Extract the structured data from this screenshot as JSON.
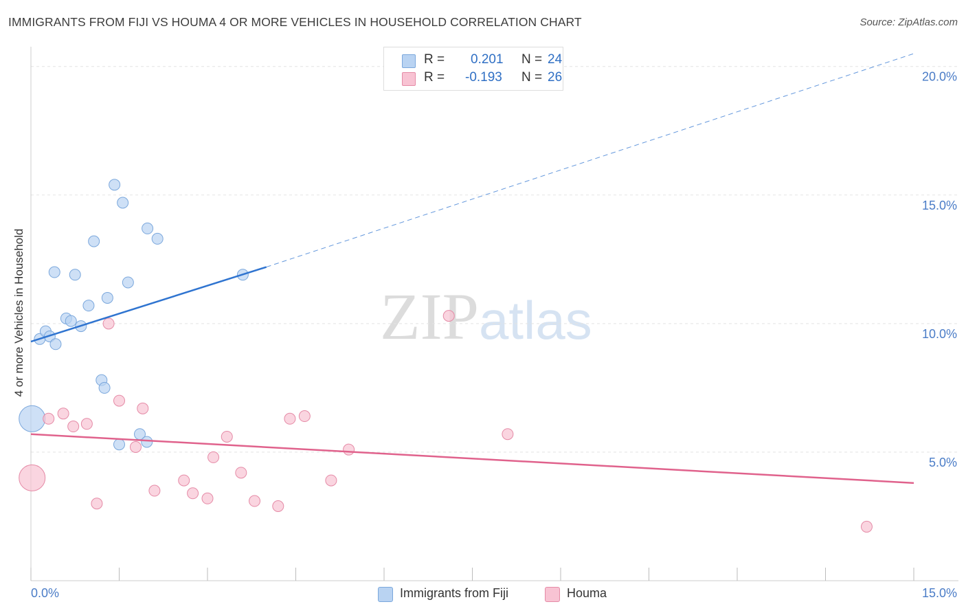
{
  "title": "IMMIGRANTS FROM FIJI VS HOUMA 4 OR MORE VEHICLES IN HOUSEHOLD CORRELATION CHART",
  "source": "Source: ZipAtlas.com",
  "watermark": {
    "zip": "ZIP",
    "atlas": "atlas"
  },
  "legend": {
    "fiji": {
      "r_label": "R =",
      "r_value": "0.201",
      "n_label": "N =",
      "n_value": "24"
    },
    "houma": {
      "r_label": "R =",
      "r_value": "-0.193",
      "n_label": "N =",
      "n_value": "26"
    }
  },
  "bottom_legend": {
    "fiji": "Immigrants from Fiji",
    "houma": "Houma"
  },
  "colors": {
    "fiji_fill": "#b9d3f2",
    "fiji_stroke": "#7aa7dc",
    "fiji_line": "#2f74d0",
    "houma_fill": "#f8c3d3",
    "houma_stroke": "#e58aa6",
    "houma_line": "#e0628c",
    "axis_label": "#4a7cc7",
    "grid": "#e3e3e3"
  },
  "chart_data": {
    "type": "scatter",
    "title": "IMMIGRANTS FROM FIJI VS HOUMA 4 OR MORE VEHICLES IN HOUSEHOLD CORRELATION CHART",
    "xlabel": "",
    "ylabel": "4 or more Vehicles in Household",
    "xlim": [
      0,
      15
    ],
    "ylim": [
      0,
      20.5
    ],
    "x_tick_labels": [
      "0.0%",
      "15.0%"
    ],
    "y_ticks": [
      5,
      10,
      15,
      20
    ],
    "y_tick_labels": [
      "5.0%",
      "10.0%",
      "15.0%",
      "20.0%"
    ],
    "grid": true,
    "series": [
      {
        "name": "Immigrants from Fiji",
        "r": 0.201,
        "n": 24,
        "points": [
          {
            "x": 0.02,
            "y": 6.3,
            "size": "large"
          },
          {
            "x": 0.15,
            "y": 9.4
          },
          {
            "x": 0.25,
            "y": 9.7
          },
          {
            "x": 0.32,
            "y": 9.5
          },
          {
            "x": 0.42,
            "y": 9.2
          },
          {
            "x": 0.4,
            "y": 12.0
          },
          {
            "x": 0.6,
            "y": 10.2
          },
          {
            "x": 0.68,
            "y": 10.1
          },
          {
            "x": 0.75,
            "y": 11.9
          },
          {
            "x": 0.85,
            "y": 9.9
          },
          {
            "x": 0.98,
            "y": 10.7
          },
          {
            "x": 1.07,
            "y": 13.2
          },
          {
            "x": 1.2,
            "y": 7.8
          },
          {
            "x": 1.25,
            "y": 7.5
          },
          {
            "x": 1.3,
            "y": 11.0
          },
          {
            "x": 1.42,
            "y": 15.4
          },
          {
            "x": 1.5,
            "y": 5.3
          },
          {
            "x": 1.56,
            "y": 14.7
          },
          {
            "x": 1.65,
            "y": 11.6
          },
          {
            "x": 1.85,
            "y": 5.7
          },
          {
            "x": 1.97,
            "y": 5.4
          },
          {
            "x": 1.98,
            "y": 13.7
          },
          {
            "x": 2.15,
            "y": 13.3
          },
          {
            "x": 3.6,
            "y": 11.9
          }
        ],
        "trend": {
          "x0": 0.0,
          "y0": 9.3,
          "x1": 4.0,
          "y1": 12.2,
          "x_dash_end": 15.0,
          "y_dash_end": 20.5
        }
      },
      {
        "name": "Houma",
        "r": -0.193,
        "n": 26,
        "points": [
          {
            "x": 0.02,
            "y": 4.0,
            "size": "large"
          },
          {
            "x": 0.3,
            "y": 6.3
          },
          {
            "x": 0.55,
            "y": 6.5
          },
          {
            "x": 0.72,
            "y": 6.0
          },
          {
            "x": 0.95,
            "y": 6.1
          },
          {
            "x": 1.12,
            "y": 3.0
          },
          {
            "x": 1.32,
            "y": 10.0
          },
          {
            "x": 1.5,
            "y": 7.0
          },
          {
            "x": 1.78,
            "y": 5.2
          },
          {
            "x": 1.9,
            "y": 6.7
          },
          {
            "x": 2.1,
            "y": 3.5
          },
          {
            "x": 2.6,
            "y": 3.9
          },
          {
            "x": 2.75,
            "y": 3.4
          },
          {
            "x": 3.0,
            "y": 3.2
          },
          {
            "x": 3.1,
            "y": 4.8
          },
          {
            "x": 3.33,
            "y": 5.6
          },
          {
            "x": 3.57,
            "y": 4.2
          },
          {
            "x": 3.8,
            "y": 3.1
          },
          {
            "x": 4.2,
            "y": 2.9
          },
          {
            "x": 4.4,
            "y": 6.3
          },
          {
            "x": 4.65,
            "y": 6.4
          },
          {
            "x": 5.1,
            "y": 3.9
          },
          {
            "x": 5.4,
            "y": 5.1
          },
          {
            "x": 7.1,
            "y": 10.3
          },
          {
            "x": 8.1,
            "y": 5.7
          },
          {
            "x": 14.2,
            "y": 2.1
          }
        ],
        "trend": {
          "x0": 0.0,
          "y0": 5.7,
          "x1": 15.0,
          "y1": 3.8
        }
      }
    ]
  }
}
